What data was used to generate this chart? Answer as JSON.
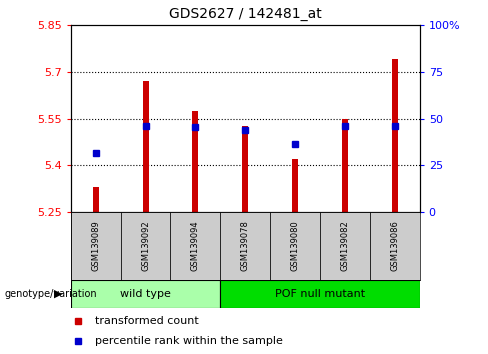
{
  "title": "GDS2627 / 142481_at",
  "samples": [
    "GSM139089",
    "GSM139092",
    "GSM139094",
    "GSM139078",
    "GSM139080",
    "GSM139082",
    "GSM139086"
  ],
  "bar_bottoms": [
    5.25,
    5.25,
    5.25,
    5.25,
    5.25,
    5.25,
    5.25
  ],
  "bar_tops": [
    5.33,
    5.67,
    5.575,
    5.525,
    5.42,
    5.55,
    5.74
  ],
  "blue_y": [
    5.44,
    5.525,
    5.523,
    5.515,
    5.47,
    5.525,
    5.525
  ],
  "bar_color": "#cc0000",
  "blue_color": "#0000cc",
  "ylim": [
    5.25,
    5.85
  ],
  "yticks": [
    5.25,
    5.4,
    5.55,
    5.7,
    5.85
  ],
  "ytick_labels": [
    "5.25",
    "5.4",
    "5.55",
    "5.7",
    "5.85"
  ],
  "right_yticks": [
    0,
    25,
    50,
    75,
    100
  ],
  "right_ytick_labels": [
    "0",
    "25",
    "50",
    "75",
    "100%"
  ],
  "groups": [
    {
      "label": "wild type",
      "indices": [
        0,
        1,
        2
      ],
      "color": "#aaffaa"
    },
    {
      "label": "POF null mutant",
      "indices": [
        3,
        4,
        5,
        6
      ],
      "color": "#00dd00"
    }
  ],
  "group_label_prefix": "genotype/variation",
  "legend_items": [
    {
      "label": "transformed count",
      "color": "#cc0000"
    },
    {
      "label": "percentile rank within the sample",
      "color": "#0000cc"
    }
  ],
  "bar_width": 0.12,
  "blue_marker_size": 5
}
